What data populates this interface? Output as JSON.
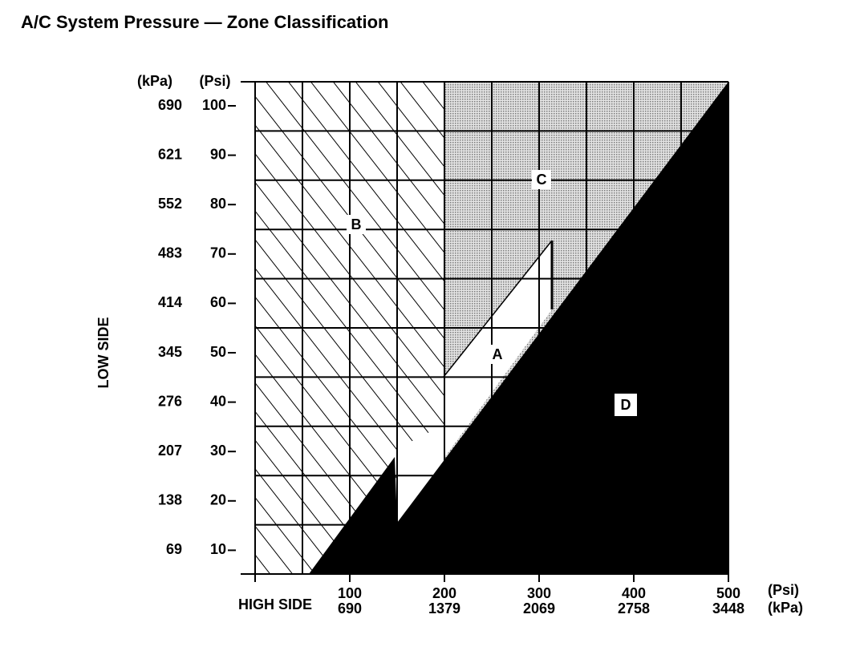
{
  "title": "A/C System Pressure — Zone Classification",
  "y_axis": {
    "label": "LOW SIDE",
    "unit_kpa": "(kPa)",
    "unit_psi": "(Psi)",
    "ticks": [
      {
        "psi": "100",
        "kpa": "690"
      },
      {
        "psi": "90",
        "kpa": "621"
      },
      {
        "psi": "80",
        "kpa": "552"
      },
      {
        "psi": "70",
        "kpa": "483"
      },
      {
        "psi": "60",
        "kpa": "414"
      },
      {
        "psi": "50",
        "kpa": "345"
      },
      {
        "psi": "40",
        "kpa": "276"
      },
      {
        "psi": "30",
        "kpa": "207"
      },
      {
        "psi": "20",
        "kpa": "138"
      },
      {
        "psi": "10",
        "kpa": "69"
      }
    ]
  },
  "x_axis": {
    "label": "HIGH SIDE",
    "unit_psi": "(Psi)",
    "unit_kpa": "(kPa)",
    "ticks": [
      {
        "psi": "100",
        "kpa": "690"
      },
      {
        "psi": "200",
        "kpa": "1379"
      },
      {
        "psi": "300",
        "kpa": "2069"
      },
      {
        "psi": "400",
        "kpa": "2758"
      },
      {
        "psi": "500",
        "kpa": "3448"
      }
    ]
  },
  "zones": {
    "a": "A",
    "b": "B",
    "c": "C",
    "d": "D"
  }
}
